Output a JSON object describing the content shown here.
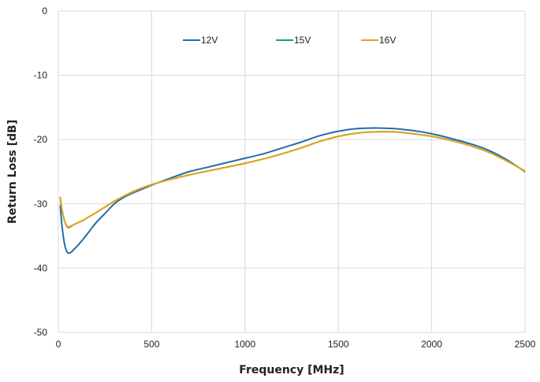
{
  "chart_data": {
    "type": "line",
    "title": "",
    "xlabel": "Frequency [MHz]",
    "ylabel": "Return Loss [dB]",
    "xlim": [
      0,
      2500
    ],
    "ylim": [
      -50,
      0
    ],
    "x_ticks": [
      0,
      500,
      1000,
      1500,
      2000,
      2500
    ],
    "y_ticks": [
      0,
      -10,
      -20,
      -30,
      -40,
      -50
    ],
    "x_tick_labels": [
      "0",
      "500",
      "1000",
      "1500",
      "2000",
      "2500"
    ],
    "y_tick_labels": [
      "0",
      "-10",
      "-20",
      "-30",
      "-40",
      "-50"
    ],
    "grid": "vertical and horizontal",
    "legend_position": "top-center",
    "series": [
      {
        "name": "12V",
        "color": "#1f6eab",
        "x": [
          10,
          20,
          35,
          50,
          65,
          80,
          100,
          130,
          160,
          200,
          250,
          300,
          350,
          400,
          450,
          500,
          600,
          700,
          800,
          900,
          1000,
          1100,
          1200,
          1300,
          1400,
          1500,
          1600,
          1700,
          1800,
          1900,
          2000,
          2100,
          2200,
          2300,
          2400,
          2500
        ],
        "values": [
          -30.2,
          -33.5,
          -36.5,
          -37.6,
          -37.6,
          -37.2,
          -36.6,
          -35.6,
          -34.5,
          -33.0,
          -31.5,
          -30.0,
          -29.0,
          -28.3,
          -27.7,
          -27.1,
          -26.0,
          -25.0,
          -24.3,
          -23.6,
          -22.9,
          -22.2,
          -21.3,
          -20.4,
          -19.4,
          -18.7,
          -18.3,
          -18.2,
          -18.3,
          -18.6,
          -19.1,
          -19.8,
          -20.6,
          -21.6,
          -23.1,
          -25.0
        ]
      },
      {
        "name": "15V",
        "color": "#1aa07a",
        "x": [
          10,
          20,
          35,
          50,
          65,
          80,
          100,
          130,
          160,
          200,
          250,
          300,
          350,
          400,
          450,
          500,
          600,
          700,
          800,
          900,
          1000,
          1100,
          1200,
          1300,
          1400,
          1500,
          1600,
          1700,
          1800,
          1900,
          2000,
          2100,
          2200,
          2300,
          2400,
          2500
        ],
        "values": [
          -29.0,
          -31.0,
          -32.8,
          -33.6,
          -33.5,
          -33.3,
          -33.0,
          -32.6,
          -32.1,
          -31.4,
          -30.5,
          -29.6,
          -28.8,
          -28.1,
          -27.5,
          -27.0,
          -26.2,
          -25.5,
          -24.9,
          -24.3,
          -23.7,
          -23.0,
          -22.2,
          -21.3,
          -20.3,
          -19.5,
          -19.0,
          -18.8,
          -18.8,
          -19.1,
          -19.5,
          -20.1,
          -20.9,
          -21.9,
          -23.3,
          -24.9
        ]
      },
      {
        "name": "16V",
        "color": "#e8a319",
        "x": [
          10,
          20,
          35,
          50,
          65,
          80,
          100,
          130,
          160,
          200,
          250,
          300,
          350,
          400,
          450,
          500,
          600,
          700,
          800,
          900,
          1000,
          1100,
          1200,
          1300,
          1400,
          1500,
          1600,
          1700,
          1800,
          1900,
          2000,
          2100,
          2200,
          2300,
          2400,
          2500
        ],
        "values": [
          -28.9,
          -30.9,
          -32.8,
          -33.7,
          -33.6,
          -33.3,
          -33.0,
          -32.6,
          -32.1,
          -31.4,
          -30.5,
          -29.6,
          -28.8,
          -28.1,
          -27.5,
          -27.0,
          -26.2,
          -25.5,
          -24.9,
          -24.3,
          -23.7,
          -23.0,
          -22.2,
          -21.3,
          -20.3,
          -19.5,
          -19.0,
          -18.8,
          -18.8,
          -19.1,
          -19.5,
          -20.1,
          -20.9,
          -21.9,
          -23.3,
          -24.9
        ]
      }
    ]
  }
}
